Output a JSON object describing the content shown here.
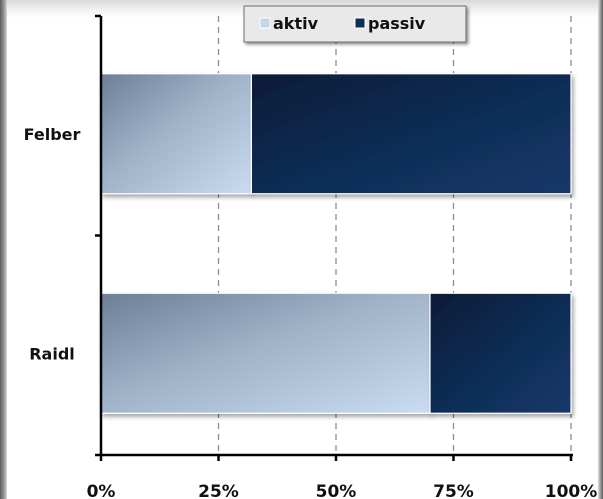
{
  "chart_data": {
    "type": "bar",
    "orientation": "horizontal",
    "stacked": "percent",
    "categories": [
      "Felber",
      "Raidl"
    ],
    "series": [
      {
        "name": "aktiv",
        "values": [
          32,
          70
        ],
        "color": "#b7c8dd"
      },
      {
        "name": "passiv",
        "values": [
          68,
          30
        ],
        "color": "#0f2d57"
      }
    ],
    "xticks": [
      "0%",
      "25%",
      "50%",
      "75%",
      "100%"
    ],
    "xlim": [
      0,
      100
    ],
    "grid": "vertical dashed",
    "legend": "top-center"
  }
}
